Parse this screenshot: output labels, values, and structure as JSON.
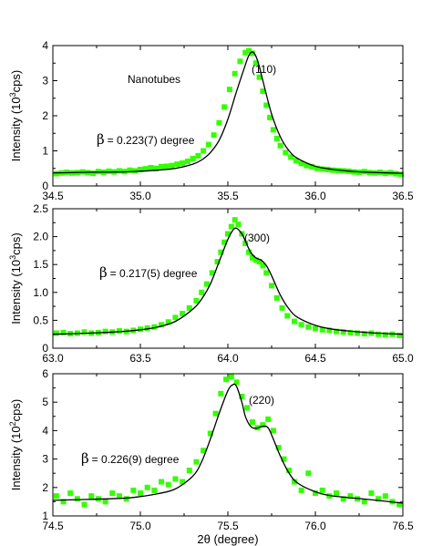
{
  "colors": {
    "points": "#33ff00",
    "fit": "#000000",
    "axes": "#000000"
  },
  "chart_data": [
    {
      "type": "scatter",
      "panel": "top",
      "xlim": [
        34.5,
        36.5
      ],
      "ylim": [
        0,
        4
      ],
      "xticks": [
        "34.5",
        "35.0",
        "35.5",
        "36.0",
        "36.5"
      ],
      "yticks": [
        "0",
        "1",
        "2",
        "3",
        "4"
      ],
      "ylabel": "Intensity (10³cps)",
      "xlabel": "",
      "annotations": {
        "sample": "Nanotubes",
        "peak": "(110)",
        "beta_symbol": "β",
        "beta_text": "= 0.223(7) degree"
      },
      "series": [
        {
          "kind": "points",
          "x": [
            34.52,
            34.55,
            34.58,
            34.61,
            34.64,
            34.67,
            34.7,
            34.73,
            34.76,
            34.79,
            34.82,
            34.85,
            34.88,
            34.91,
            34.94,
            34.97,
            35.0,
            35.03,
            35.06,
            35.09,
            35.12,
            35.15,
            35.18,
            35.21,
            35.24,
            35.27,
            35.3,
            35.33,
            35.36,
            35.39,
            35.42,
            35.45,
            35.48,
            35.51,
            35.54,
            35.57,
            35.6,
            35.62,
            35.64,
            35.66,
            35.68,
            35.7,
            35.72,
            35.74,
            35.76,
            35.78,
            35.8,
            35.83,
            35.86,
            35.89,
            35.92,
            35.95,
            35.98,
            36.01,
            36.04,
            36.07,
            36.1,
            36.13,
            36.16,
            36.19,
            36.22,
            36.25,
            36.28,
            36.31,
            36.34,
            36.37,
            36.4,
            36.43,
            36.46,
            36.49
          ],
          "y": [
            0.35,
            0.37,
            0.39,
            0.37,
            0.38,
            0.4,
            0.38,
            0.36,
            0.41,
            0.39,
            0.42,
            0.4,
            0.43,
            0.41,
            0.45,
            0.43,
            0.47,
            0.49,
            0.52,
            0.5,
            0.55,
            0.56,
            0.58,
            0.62,
            0.65,
            0.7,
            0.78,
            0.86,
            1.0,
            1.18,
            1.45,
            1.8,
            2.25,
            2.75,
            3.2,
            3.55,
            3.8,
            3.85,
            3.78,
            3.5,
            3.1,
            2.7,
            2.3,
            1.95,
            1.6,
            1.35,
            1.15,
            0.95,
            0.82,
            0.72,
            0.64,
            0.58,
            0.55,
            0.5,
            0.48,
            0.47,
            0.45,
            0.44,
            0.43,
            0.42,
            0.4,
            0.39,
            0.41,
            0.38,
            0.37,
            0.39,
            0.36,
            0.38,
            0.35,
            0.33
          ]
        },
        {
          "kind": "fit",
          "x": [
            34.5,
            34.7,
            34.9,
            35.0,
            35.1,
            35.2,
            35.3,
            35.35,
            35.4,
            35.45,
            35.5,
            35.55,
            35.6,
            35.62,
            35.64,
            35.66,
            35.68,
            35.7,
            35.75,
            35.8,
            35.85,
            35.9,
            36.0,
            36.1,
            36.2,
            36.3,
            36.5
          ],
          "y": [
            0.37,
            0.39,
            0.4,
            0.42,
            0.45,
            0.5,
            0.62,
            0.74,
            0.95,
            1.3,
            1.9,
            2.7,
            3.45,
            3.72,
            3.82,
            3.7,
            3.4,
            3.0,
            2.05,
            1.4,
            1.0,
            0.78,
            0.56,
            0.47,
            0.42,
            0.39,
            0.36
          ]
        }
      ]
    },
    {
      "type": "scatter",
      "panel": "middle",
      "xlim": [
        63.0,
        65.0
      ],
      "ylim": [
        0,
        2.5
      ],
      "xticks": [
        "63.0",
        "63.5",
        "64.0",
        "64.5",
        "65.0"
      ],
      "yticks": [
        "0",
        "0.5",
        "1.0",
        "1.5",
        "2.0",
        "2.5"
      ],
      "ylabel": "Intensity (10³cps)",
      "xlabel": "",
      "annotations": {
        "peak": "(300)",
        "beta_symbol": "β",
        "beta_text": "= 0.217(5) degree"
      },
      "series": [
        {
          "kind": "points",
          "x": [
            63.02,
            63.06,
            63.1,
            63.14,
            63.18,
            63.22,
            63.26,
            63.3,
            63.34,
            63.38,
            63.42,
            63.46,
            63.5,
            63.54,
            63.58,
            63.62,
            63.66,
            63.7,
            63.74,
            63.78,
            63.82,
            63.85,
            63.88,
            63.91,
            63.94,
            63.96,
            63.98,
            64.0,
            64.02,
            64.04,
            64.06,
            64.08,
            64.1,
            64.12,
            64.14,
            64.16,
            64.18,
            64.2,
            64.22,
            64.25,
            64.28,
            64.31,
            64.34,
            64.38,
            64.42,
            64.46,
            64.5,
            64.54,
            64.58,
            64.62,
            64.66,
            64.7,
            64.74,
            64.78,
            64.82,
            64.86,
            64.9,
            64.94,
            64.98
          ],
          "y": [
            0.27,
            0.28,
            0.26,
            0.27,
            0.29,
            0.27,
            0.28,
            0.3,
            0.29,
            0.31,
            0.3,
            0.32,
            0.34,
            0.36,
            0.38,
            0.42,
            0.47,
            0.55,
            0.62,
            0.72,
            0.85,
            1.0,
            1.15,
            1.35,
            1.55,
            1.72,
            1.9,
            2.05,
            2.18,
            2.3,
            2.22,
            2.05,
            1.88,
            1.72,
            1.62,
            1.58,
            1.55,
            1.48,
            1.35,
            1.12,
            0.9,
            0.72,
            0.58,
            0.48,
            0.42,
            0.38,
            0.35,
            0.33,
            0.32,
            0.3,
            0.29,
            0.28,
            0.27,
            0.26,
            0.27,
            0.25,
            0.24,
            0.25,
            0.23
          ]
        },
        {
          "kind": "fit",
          "x": [
            63.0,
            63.2,
            63.4,
            63.5,
            63.6,
            63.7,
            63.8,
            63.85,
            63.9,
            63.95,
            64.0,
            64.03,
            64.05,
            64.08,
            64.1,
            64.13,
            64.16,
            64.19,
            64.22,
            64.25,
            64.3,
            64.35,
            64.4,
            64.5,
            64.6,
            64.8,
            65.0
          ],
          "y": [
            0.25,
            0.27,
            0.3,
            0.33,
            0.38,
            0.48,
            0.7,
            0.88,
            1.15,
            1.55,
            1.95,
            2.12,
            2.15,
            2.05,
            1.92,
            1.72,
            1.62,
            1.58,
            1.48,
            1.3,
            0.95,
            0.7,
            0.55,
            0.41,
            0.34,
            0.28,
            0.25
          ]
        }
      ]
    },
    {
      "type": "scatter",
      "panel": "bottom",
      "xlim": [
        74.5,
        76.5
      ],
      "ylim": [
        1,
        6
      ],
      "xticks": [
        "74.5",
        "75.0",
        "75.5",
        "76.0",
        "76.5"
      ],
      "yticks": [
        "1",
        "2",
        "3",
        "4",
        "5",
        "6"
      ],
      "ylabel": "Intensity (10²cps)",
      "xlabel": "2θ (degree)",
      "annotations": {
        "peak": "(220)",
        "beta_symbol": "β",
        "beta_text": "= 0.226(9) degree"
      },
      "series": [
        {
          "kind": "points",
          "x": [
            74.52,
            74.56,
            74.6,
            74.64,
            74.68,
            74.72,
            74.76,
            74.8,
            74.84,
            74.88,
            74.92,
            74.96,
            75.0,
            75.04,
            75.08,
            75.12,
            75.16,
            75.2,
            75.24,
            75.28,
            75.32,
            75.36,
            75.4,
            75.43,
            75.46,
            75.49,
            75.52,
            75.55,
            75.58,
            75.61,
            75.64,
            75.67,
            75.7,
            75.73,
            75.76,
            75.79,
            75.82,
            75.85,
            75.88,
            75.92,
            75.96,
            76.0,
            76.04,
            76.08,
            76.12,
            76.16,
            76.2,
            76.24,
            76.28,
            76.32,
            76.36,
            76.4,
            76.44,
            76.48
          ],
          "y": [
            1.7,
            1.5,
            1.8,
            1.6,
            1.4,
            1.7,
            1.6,
            1.5,
            1.8,
            1.7,
            1.6,
            1.9,
            1.8,
            2.0,
            1.9,
            2.2,
            2.1,
            2.3,
            2.2,
            2.6,
            2.9,
            3.3,
            3.9,
            4.6,
            5.3,
            5.8,
            5.9,
            5.7,
            5.2,
            4.8,
            4.3,
            4.1,
            4.2,
            4.4,
            4.0,
            3.4,
            3.0,
            2.6,
            2.2,
            1.9,
            2.5,
            1.8,
            1.9,
            1.7,
            1.8,
            1.6,
            1.7,
            1.6,
            1.5,
            1.8,
            1.6,
            1.7,
            1.5,
            1.4
          ]
        },
        {
          "kind": "fit",
          "x": [
            74.5,
            74.7,
            74.9,
            75.0,
            75.1,
            75.2,
            75.3,
            75.35,
            75.4,
            75.45,
            75.5,
            75.53,
            75.55,
            75.58,
            75.6,
            75.63,
            75.66,
            75.7,
            75.73,
            75.76,
            75.8,
            75.85,
            75.9,
            76.0,
            76.1,
            76.3,
            76.5
          ],
          "y": [
            1.55,
            1.58,
            1.62,
            1.68,
            1.78,
            1.95,
            2.4,
            2.9,
            3.7,
            4.6,
            5.4,
            5.62,
            5.55,
            5.0,
            4.5,
            4.15,
            4.08,
            4.15,
            4.1,
            3.7,
            3.1,
            2.5,
            2.15,
            1.85,
            1.7,
            1.58,
            1.45
          ]
        }
      ]
    }
  ]
}
